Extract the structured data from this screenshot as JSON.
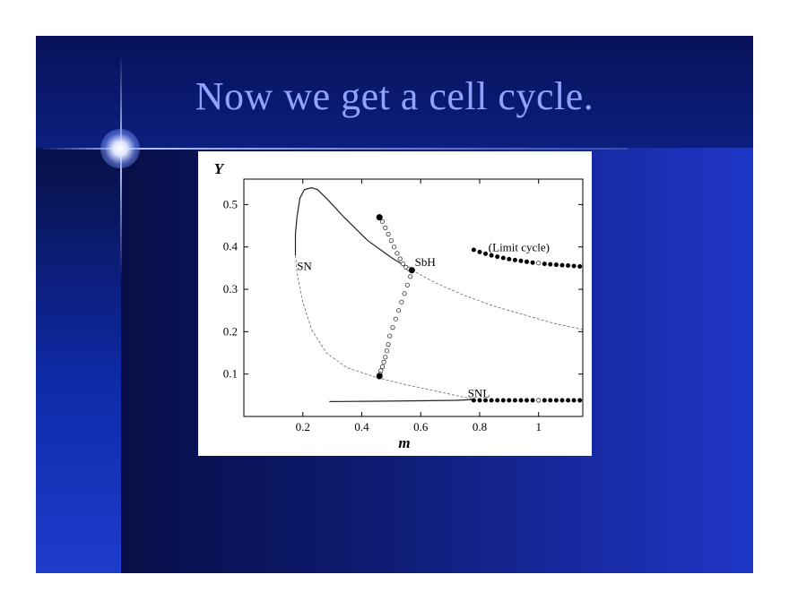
{
  "slide": {
    "title": "Now we get a cell cycle."
  },
  "colors": {
    "title": "#8fa2ff",
    "background_left": "#050a3a",
    "background_right": "#1e36c8"
  },
  "chart_data": {
    "type": "line",
    "xlabel": "m",
    "ylabel": "Y",
    "xlim": [
      0.0,
      1.15
    ],
    "ylim": [
      0.0,
      0.56
    ],
    "xticks": [
      0.2,
      0.4,
      0.6,
      0.8,
      1
    ],
    "xtick_labels": [
      "0.2",
      "0.4",
      "0.6",
      "0.8",
      "1"
    ],
    "yticks": [
      0.1,
      0.2,
      0.3,
      0.4,
      0.5
    ],
    "ytick_labels": [
      "0.1",
      "0.2",
      "0.3",
      "0.4",
      "0.5"
    ],
    "grid": false,
    "annotations": [
      {
        "text": "SN",
        "x": 0.18,
        "y": 0.345
      },
      {
        "text": "SbH",
        "x": 0.58,
        "y": 0.355
      },
      {
        "text": "(Limit cycle)",
        "x": 0.83,
        "y": 0.39
      },
      {
        "text": "SNL",
        "x": 0.76,
        "y": 0.045
      }
    ],
    "series": [
      {
        "style": "solid",
        "x": [
          0.57,
          0.5,
          0.42,
          0.34,
          0.28,
          0.25,
          0.23,
          0.205,
          0.19,
          0.18,
          0.175,
          0.175
        ],
        "y": [
          0.345,
          0.375,
          0.415,
          0.47,
          0.515,
          0.535,
          0.54,
          0.535,
          0.515,
          0.47,
          0.43,
          0.38
        ]
      },
      {
        "style": "dashed",
        "x": [
          0.175,
          0.18,
          0.2,
          0.23,
          0.28,
          0.35,
          0.45,
          0.55,
          0.65,
          0.75,
          0.78
        ],
        "y": [
          0.38,
          0.34,
          0.27,
          0.205,
          0.15,
          0.115,
          0.092,
          0.075,
          0.06,
          0.045,
          0.04
        ]
      },
      {
        "style": "dashed",
        "x": [
          0.57,
          0.65,
          0.75,
          0.85,
          0.95,
          1.05,
          1.15
        ],
        "y": [
          0.345,
          0.315,
          0.285,
          0.26,
          0.24,
          0.22,
          0.205
        ]
      },
      {
        "style": "solid",
        "x": [
          0.29,
          0.45,
          0.6,
          0.72,
          0.78
        ],
        "y": [
          0.035,
          0.036,
          0.037,
          0.038,
          0.04
        ]
      },
      {
        "style": "dots-filled",
        "x": [
          0.78,
          0.8,
          0.82,
          0.84,
          0.86,
          0.88,
          0.9,
          0.92,
          0.94,
          0.96,
          0.98,
          1.02,
          1.04,
          1.06,
          1.08,
          1.1,
          1.12,
          1.14
        ],
        "y": [
          0.038,
          0.038,
          0.038,
          0.038,
          0.038,
          0.038,
          0.038,
          0.038,
          0.038,
          0.038,
          0.038,
          0.038,
          0.038,
          0.038,
          0.038,
          0.038,
          0.038,
          0.038
        ]
      },
      {
        "style": "dots-open",
        "x": [
          1.0
        ],
        "y": [
          0.038
        ]
      },
      {
        "style": "dots-filled",
        "x": [
          0.78,
          0.8,
          0.82,
          0.84,
          0.86,
          0.88,
          0.9,
          0.92,
          0.94,
          0.96,
          0.98,
          1.02,
          1.04,
          1.06,
          1.08,
          1.1,
          1.12,
          1.14
        ],
        "y": [
          0.393,
          0.388,
          0.384,
          0.38,
          0.377,
          0.374,
          0.371,
          0.369,
          0.367,
          0.365,
          0.363,
          0.36,
          0.359,
          0.358,
          0.357,
          0.356,
          0.355,
          0.354
        ]
      },
      {
        "style": "dots-open",
        "x": [
          1.0
        ],
        "y": [
          0.362
        ]
      },
      {
        "style": "dots-open",
        "x": [
          0.46,
          0.47,
          0.48,
          0.49,
          0.5,
          0.51,
          0.52,
          0.53,
          0.54,
          0.55,
          0.56,
          0.57,
          0.565,
          0.555,
          0.545,
          0.535,
          0.525,
          0.515,
          0.505,
          0.495,
          0.49,
          0.485,
          0.48,
          0.475,
          0.47,
          0.465,
          0.462,
          0.46
        ],
        "y": [
          0.47,
          0.46,
          0.445,
          0.43,
          0.415,
          0.4,
          0.385,
          0.372,
          0.36,
          0.352,
          0.348,
          0.345,
          0.33,
          0.31,
          0.29,
          0.27,
          0.25,
          0.23,
          0.21,
          0.19,
          0.17,
          0.155,
          0.14,
          0.128,
          0.117,
          0.108,
          0.1,
          0.095
        ]
      },
      {
        "style": "points-filled",
        "x": [
          0.46,
          0.57,
          0.46
        ],
        "y": [
          0.47,
          0.345,
          0.095
        ]
      }
    ]
  }
}
